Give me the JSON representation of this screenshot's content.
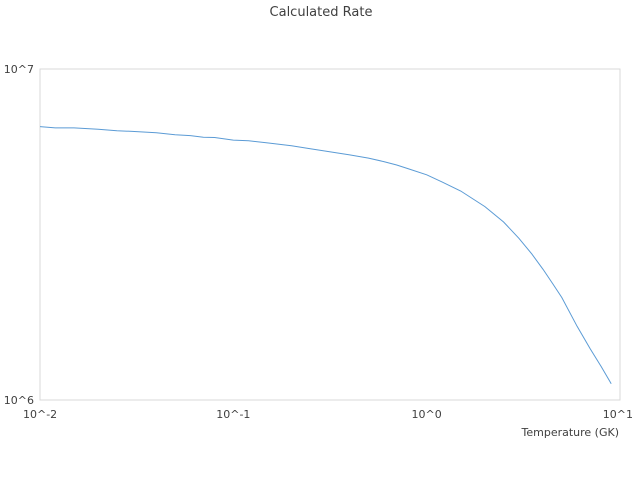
{
  "chart_data": {
    "type": "line",
    "title": "Calculated Rate",
    "xlabel": "Temperature (GK)",
    "ylabel": "",
    "x_scale": "log",
    "y_scale": "log",
    "xlim": [
      0.01,
      10
    ],
    "ylim": [
      1000000,
      10000000
    ],
    "x_ticks": [
      {
        "value": 0.01,
        "label": "10^-2"
      },
      {
        "value": 0.1,
        "label": "10^-1"
      },
      {
        "value": 1,
        "label": "10^0"
      },
      {
        "value": 10,
        "label": "10^1"
      }
    ],
    "y_ticks": [
      {
        "value": 1000000,
        "label": "10^6"
      },
      {
        "value": 10000000,
        "label": "10^7"
      }
    ],
    "grid": false,
    "legend": "none",
    "series": [
      {
        "color": "#5b9bd5",
        "x": [
          0.01,
          0.012,
          0.015,
          0.02,
          0.025,
          0.03,
          0.04,
          0.05,
          0.06,
          0.07,
          0.08,
          0.1,
          0.12,
          0.15,
          0.2,
          0.25,
          0.3,
          0.4,
          0.5,
          0.6,
          0.7,
          0.8,
          1.0,
          1.2,
          1.5,
          2.0,
          2.5,
          3.0,
          3.5,
          4.0,
          4.5,
          5.0,
          6.0,
          7.0,
          8.0,
          9.0
        ],
        "y": [
          6700000,
          6640000,
          6640000,
          6580000,
          6510000,
          6480000,
          6420000,
          6330000,
          6290000,
          6220000,
          6210000,
          6100000,
          6070000,
          5980000,
          5860000,
          5740000,
          5650000,
          5500000,
          5380000,
          5250000,
          5130000,
          5000000,
          4790000,
          4560000,
          4280000,
          3840000,
          3450000,
          3080000,
          2760000,
          2480000,
          2240000,
          2040000,
          1670000,
          1430000,
          1260000,
          1120000
        ]
      }
    ]
  }
}
